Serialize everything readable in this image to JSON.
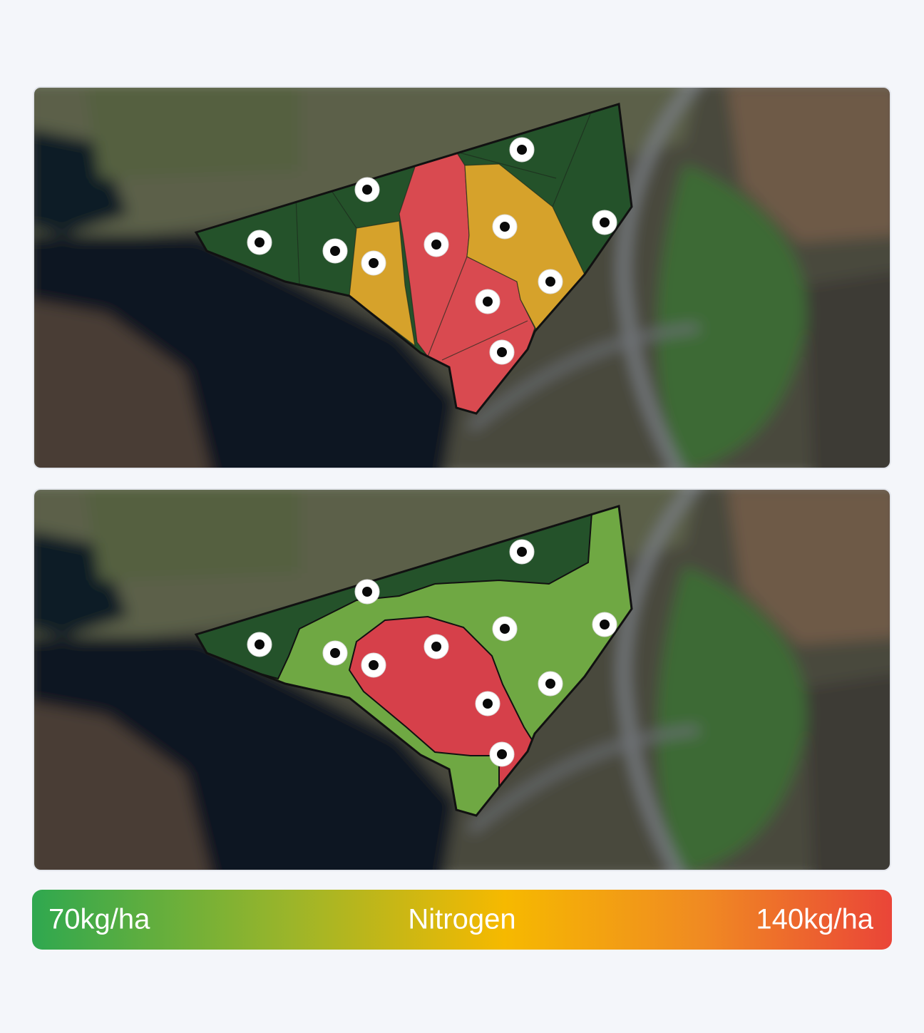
{
  "legend": {
    "min_label": "70kg/ha",
    "title": "Nitrogen",
    "max_label": "140kg/ha"
  }
}
